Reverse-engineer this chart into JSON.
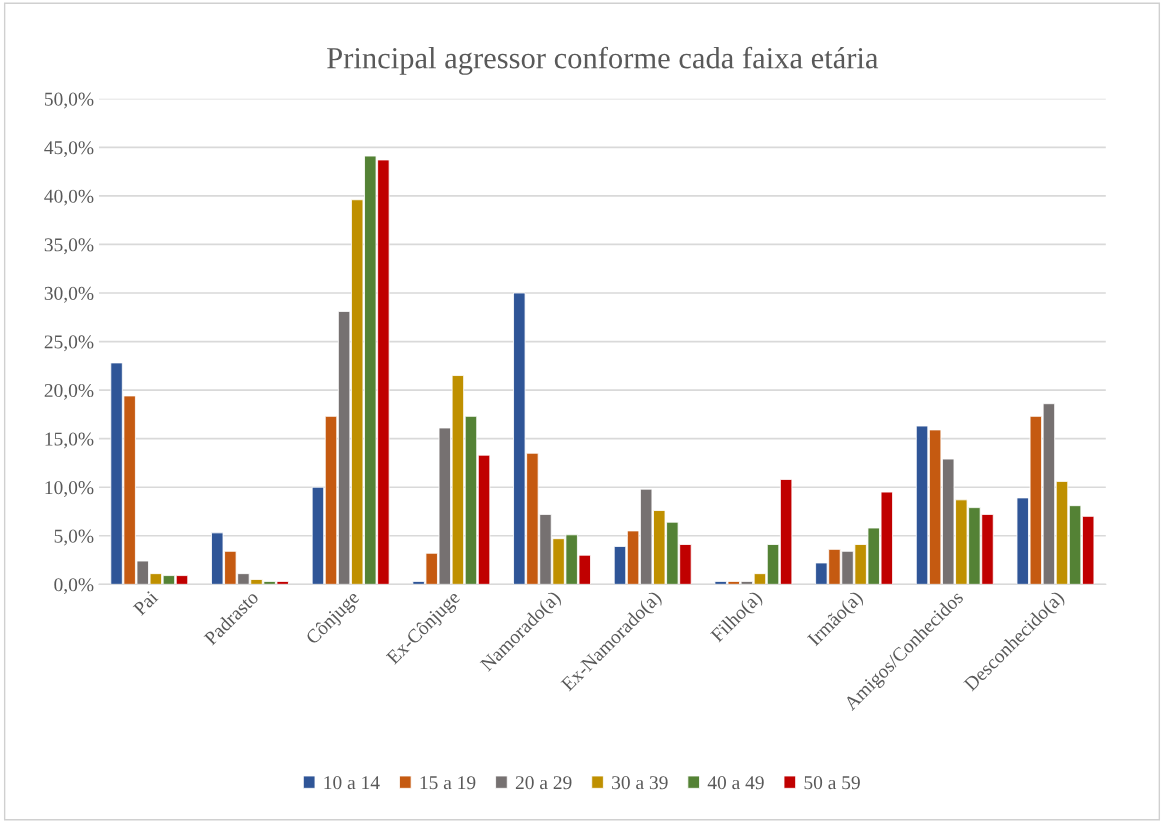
{
  "chart_data": {
    "type": "bar",
    "title": "Principal agressor conforme cada faixa etária",
    "categories": [
      "Pai",
      "Padrasto",
      "Cônjuge",
      "Ex-Cônjuge",
      "Namorado(a)",
      "Ex-Namorado(a)",
      "Filho(a)",
      "Irmão(a)",
      "Amigos/Conhecidos",
      "Desconhecido(a)"
    ],
    "series": [
      {
        "name": "10 a 14",
        "color": "#2f5597",
        "values": [
          22.8,
          5.3,
          10.0,
          0.3,
          30.0,
          3.9,
          0.3,
          2.2,
          16.3,
          8.9
        ]
      },
      {
        "name": "15 a 19",
        "color": "#c55a11",
        "values": [
          19.4,
          3.4,
          17.3,
          3.2,
          13.5,
          5.5,
          0.3,
          3.6,
          15.9,
          17.3
        ]
      },
      {
        "name": "20 a 29",
        "color": "#767171",
        "values": [
          2.4,
          1.1,
          28.1,
          16.1,
          7.2,
          9.8,
          0.3,
          3.4,
          12.9,
          18.6
        ]
      },
      {
        "name": "30 a 39",
        "color": "#bf9000",
        "values": [
          1.1,
          0.5,
          39.6,
          21.5,
          4.7,
          7.6,
          1.1,
          4.1,
          8.7,
          10.6
        ]
      },
      {
        "name": "40 a 49",
        "color": "#548235",
        "values": [
          0.9,
          0.3,
          44.1,
          17.3,
          5.1,
          6.4,
          4.1,
          5.8,
          7.9,
          8.1
        ]
      },
      {
        "name": "50 a 59",
        "color": "#c00000",
        "values": [
          0.9,
          0.3,
          43.7,
          13.3,
          3.0,
          4.1,
          10.8,
          9.5,
          7.2,
          7.0
        ]
      }
    ],
    "ylim": [
      0,
      50
    ],
    "yticks": [
      {
        "value": 0,
        "label": "0,0%"
      },
      {
        "value": 5,
        "label": "5,0%"
      },
      {
        "value": 10,
        "label": "10,0%"
      },
      {
        "value": 15,
        "label": "15,0%"
      },
      {
        "value": 20,
        "label": "20,0%"
      },
      {
        "value": 25,
        "label": "25,0%"
      },
      {
        "value": 30,
        "label": "30,0%"
      },
      {
        "value": 35,
        "label": "35,0%"
      },
      {
        "value": 40,
        "label": "40,0%"
      },
      {
        "value": 45,
        "label": "45,0%"
      },
      {
        "value": 50,
        "label": "50,0%"
      }
    ],
    "grid": "y",
    "legend": "bottom"
  }
}
